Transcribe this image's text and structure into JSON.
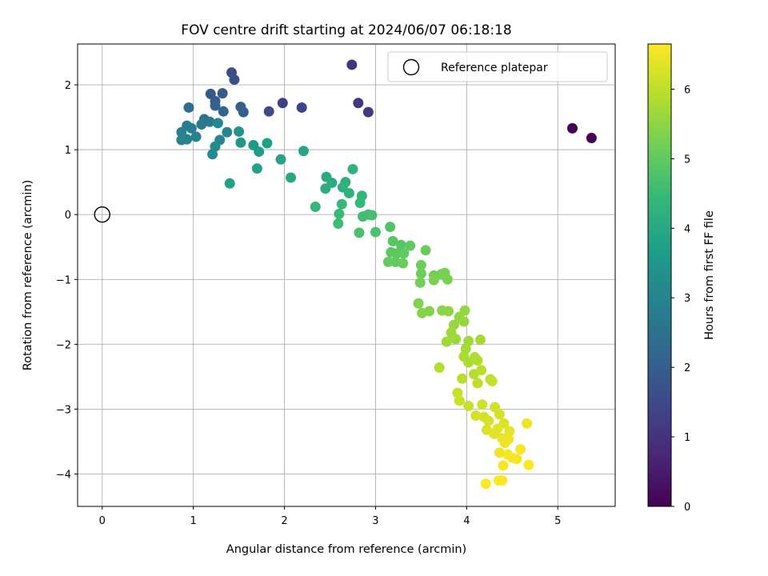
{
  "chart_data": {
    "type": "scatter",
    "title": "FOV centre drift starting at 2024/06/07 06:18:18",
    "xlabel": "Angular distance from reference (arcmin)",
    "ylabel": "Rotation from reference (arcmin)",
    "xlim": [
      -0.27,
      5.63
    ],
    "ylim": [
      -4.5,
      2.63
    ],
    "xticks": [
      "0",
      "1",
      "2",
      "3",
      "4",
      "5"
    ],
    "xtick_values": [
      0,
      1,
      2,
      3,
      4,
      5
    ],
    "yticks": [
      "2",
      "1",
      "0",
      "−1",
      "−2",
      "−3",
      "−4"
    ],
    "ytick_values": [
      2,
      1,
      0,
      -1,
      -2,
      -3,
      -4
    ],
    "grid": true,
    "legend": {
      "label": "Reference platepar",
      "location": "upper right",
      "marker": "open circle"
    },
    "colorbar": {
      "label": "Hours from first FF file",
      "colormap": "viridis",
      "range": [
        0,
        6.65
      ],
      "ticks": [
        "0",
        "1",
        "2",
        "3",
        "4",
        "5",
        "6"
      ],
      "tick_values": [
        0,
        1,
        2,
        3,
        4,
        5,
        6
      ]
    },
    "colors": [
      "#440154",
      "#482878",
      "#3e4989",
      "#31688e",
      "#26828e",
      "#1f9e89",
      "#35b779",
      "#6ece58",
      "#b5de2b",
      "#fde725"
    ],
    "reference_point": {
      "x": 0,
      "y": 0
    },
    "points": [
      {
        "x": 5.16,
        "y": 1.33,
        "t": 0.0
      },
      {
        "x": 5.37,
        "y": 1.18,
        "t": 0.0
      },
      {
        "x": 2.74,
        "y": 2.31,
        "t": 1.0
      },
      {
        "x": 2.81,
        "y": 1.72,
        "t": 1.1
      },
      {
        "x": 2.92,
        "y": 1.58,
        "t": 1.15
      },
      {
        "x": 1.98,
        "y": 1.72,
        "t": 1.3
      },
      {
        "x": 2.19,
        "y": 1.65,
        "t": 1.35
      },
      {
        "x": 1.83,
        "y": 1.59,
        "t": 1.5
      },
      {
        "x": 1.42,
        "y": 2.19,
        "t": 1.6
      },
      {
        "x": 1.45,
        "y": 2.08,
        "t": 1.65
      },
      {
        "x": 1.19,
        "y": 1.86,
        "t": 1.8
      },
      {
        "x": 1.32,
        "y": 1.87,
        "t": 1.85
      },
      {
        "x": 1.24,
        "y": 1.75,
        "t": 1.9
      },
      {
        "x": 1.52,
        "y": 1.66,
        "t": 1.95
      },
      {
        "x": 1.55,
        "y": 1.58,
        "t": 2.0
      },
      {
        "x": 1.24,
        "y": 1.68,
        "t": 2.1
      },
      {
        "x": 1.33,
        "y": 1.59,
        "t": 2.2
      },
      {
        "x": 0.95,
        "y": 1.65,
        "t": 2.4
      },
      {
        "x": 1.12,
        "y": 1.47,
        "t": 2.6
      },
      {
        "x": 1.18,
        "y": 1.43,
        "t": 2.65
      },
      {
        "x": 1.09,
        "y": 1.39,
        "t": 2.7
      },
      {
        "x": 0.93,
        "y": 1.37,
        "t": 2.8
      },
      {
        "x": 0.98,
        "y": 1.33,
        "t": 2.85
      },
      {
        "x": 0.87,
        "y": 1.27,
        "t": 2.9
      },
      {
        "x": 1.03,
        "y": 1.2,
        "t": 2.95
      },
      {
        "x": 0.87,
        "y": 1.15,
        "t": 3.0
      },
      {
        "x": 0.93,
        "y": 1.16,
        "t": 3.0
      },
      {
        "x": 1.27,
        "y": 1.41,
        "t": 3.05
      },
      {
        "x": 1.37,
        "y": 1.27,
        "t": 3.1
      },
      {
        "x": 1.29,
        "y": 1.15,
        "t": 3.1
      },
      {
        "x": 1.24,
        "y": 1.05,
        "t": 3.15
      },
      {
        "x": 1.21,
        "y": 0.93,
        "t": 3.2
      },
      {
        "x": 1.5,
        "y": 1.28,
        "t": 3.4
      },
      {
        "x": 1.52,
        "y": 1.11,
        "t": 3.5
      },
      {
        "x": 1.66,
        "y": 1.07,
        "t": 3.6
      },
      {
        "x": 1.72,
        "y": 0.97,
        "t": 3.7
      },
      {
        "x": 1.81,
        "y": 1.1,
        "t": 3.75
      },
      {
        "x": 1.4,
        "y": 0.48,
        "t": 3.8
      },
      {
        "x": 1.7,
        "y": 0.71,
        "t": 3.85
      },
      {
        "x": 1.96,
        "y": 0.85,
        "t": 3.9
      },
      {
        "x": 2.21,
        "y": 0.98,
        "t": 3.95
      },
      {
        "x": 2.07,
        "y": 0.57,
        "t": 4.0
      },
      {
        "x": 2.46,
        "y": 0.58,
        "t": 4.05
      },
      {
        "x": 2.52,
        "y": 0.49,
        "t": 4.1
      },
      {
        "x": 2.45,
        "y": 0.4,
        "t": 4.15
      },
      {
        "x": 2.67,
        "y": 0.5,
        "t": 4.2
      },
      {
        "x": 2.64,
        "y": 0.42,
        "t": 4.25
      },
      {
        "x": 2.75,
        "y": 0.7,
        "t": 4.25
      },
      {
        "x": 2.71,
        "y": 0.33,
        "t": 4.3
      },
      {
        "x": 2.85,
        "y": 0.29,
        "t": 4.35
      },
      {
        "x": 2.34,
        "y": 0.12,
        "t": 4.4
      },
      {
        "x": 2.63,
        "y": 0.16,
        "t": 4.45
      },
      {
        "x": 2.83,
        "y": 0.18,
        "t": 4.45
      },
      {
        "x": 2.6,
        "y": 0.01,
        "t": 4.5
      },
      {
        "x": 2.59,
        "y": -0.14,
        "t": 4.55
      },
      {
        "x": 2.86,
        "y": -0.03,
        "t": 4.6
      },
      {
        "x": 2.92,
        "y": 0.0,
        "t": 4.6
      },
      {
        "x": 2.96,
        "y": -0.01,
        "t": 4.65
      },
      {
        "x": 2.82,
        "y": -0.28,
        "t": 4.7
      },
      {
        "x": 3.0,
        "y": -0.27,
        "t": 4.75
      },
      {
        "x": 3.16,
        "y": -0.19,
        "t": 4.8
      },
      {
        "x": 3.19,
        "y": -0.41,
        "t": 4.85
      },
      {
        "x": 3.28,
        "y": -0.47,
        "t": 4.9
      },
      {
        "x": 3.17,
        "y": -0.58,
        "t": 4.95
      },
      {
        "x": 3.23,
        "y": -0.6,
        "t": 4.95
      },
      {
        "x": 3.38,
        "y": -0.48,
        "t": 5.0
      },
      {
        "x": 3.31,
        "y": -0.6,
        "t": 5.0
      },
      {
        "x": 3.14,
        "y": -0.73,
        "t": 5.05
      },
      {
        "x": 3.22,
        "y": -0.73,
        "t": 5.05
      },
      {
        "x": 3.3,
        "y": -0.75,
        "t": 5.1
      },
      {
        "x": 3.55,
        "y": -0.55,
        "t": 5.1
      },
      {
        "x": 3.5,
        "y": -0.78,
        "t": 5.15
      },
      {
        "x": 3.5,
        "y": -0.91,
        "t": 5.15
      },
      {
        "x": 3.49,
        "y": -1.05,
        "t": 5.2
      },
      {
        "x": 3.64,
        "y": -0.94,
        "t": 5.2
      },
      {
        "x": 3.72,
        "y": -0.92,
        "t": 5.25
      },
      {
        "x": 3.76,
        "y": -0.9,
        "t": 5.25
      },
      {
        "x": 3.64,
        "y": -1.01,
        "t": 5.3
      },
      {
        "x": 3.79,
        "y": -1.0,
        "t": 5.3
      },
      {
        "x": 3.47,
        "y": -1.37,
        "t": 5.35
      },
      {
        "x": 3.51,
        "y": -1.52,
        "t": 5.4
      },
      {
        "x": 3.59,
        "y": -1.49,
        "t": 5.4
      },
      {
        "x": 3.73,
        "y": -1.48,
        "t": 5.45
      },
      {
        "x": 3.8,
        "y": -1.49,
        "t": 5.5
      },
      {
        "x": 3.92,
        "y": -1.58,
        "t": 5.55
      },
      {
        "x": 3.98,
        "y": -1.48,
        "t": 5.55
      },
      {
        "x": 3.86,
        "y": -1.7,
        "t": 5.6
      },
      {
        "x": 3.97,
        "y": -1.65,
        "t": 5.6
      },
      {
        "x": 3.83,
        "y": -1.82,
        "t": 5.65
      },
      {
        "x": 3.88,
        "y": -1.92,
        "t": 5.65
      },
      {
        "x": 3.78,
        "y": -1.96,
        "t": 5.7
      },
      {
        "x": 4.02,
        "y": -1.95,
        "t": 5.7
      },
      {
        "x": 4.15,
        "y": -1.93,
        "t": 5.75
      },
      {
        "x": 3.99,
        "y": -2.07,
        "t": 5.75
      },
      {
        "x": 3.97,
        "y": -2.19,
        "t": 5.8
      },
      {
        "x": 4.02,
        "y": -2.28,
        "t": 5.8
      },
      {
        "x": 4.09,
        "y": -2.2,
        "t": 5.85
      },
      {
        "x": 4.12,
        "y": -2.25,
        "t": 5.85
      },
      {
        "x": 3.7,
        "y": -2.36,
        "t": 5.9
      },
      {
        "x": 4.08,
        "y": -2.46,
        "t": 5.9
      },
      {
        "x": 4.16,
        "y": -2.4,
        "t": 5.95
      },
      {
        "x": 3.95,
        "y": -2.53,
        "t": 5.95
      },
      {
        "x": 4.12,
        "y": -2.6,
        "t": 6.0
      },
      {
        "x": 4.26,
        "y": -2.54,
        "t": 6.0
      },
      {
        "x": 4.28,
        "y": -2.57,
        "t": 6.05
      },
      {
        "x": 3.9,
        "y": -2.75,
        "t": 6.05
      },
      {
        "x": 3.92,
        "y": -2.87,
        "t": 6.1
      },
      {
        "x": 4.02,
        "y": -2.95,
        "t": 6.1
      },
      {
        "x": 4.17,
        "y": -2.93,
        "t": 6.15
      },
      {
        "x": 4.31,
        "y": -2.97,
        "t": 6.15
      },
      {
        "x": 4.1,
        "y": -3.1,
        "t": 6.2
      },
      {
        "x": 4.19,
        "y": -3.12,
        "t": 6.2
      },
      {
        "x": 4.24,
        "y": -3.18,
        "t": 6.25
      },
      {
        "x": 4.36,
        "y": -3.08,
        "t": 6.25
      },
      {
        "x": 4.41,
        "y": -3.22,
        "t": 6.3
      },
      {
        "x": 4.22,
        "y": -3.32,
        "t": 6.3
      },
      {
        "x": 4.3,
        "y": -3.38,
        "t": 6.35
      },
      {
        "x": 4.34,
        "y": -3.3,
        "t": 6.35
      },
      {
        "x": 4.39,
        "y": -3.45,
        "t": 6.4
      },
      {
        "x": 4.47,
        "y": -3.34,
        "t": 6.4
      },
      {
        "x": 4.42,
        "y": -3.52,
        "t": 6.45
      },
      {
        "x": 4.46,
        "y": -3.46,
        "t": 6.45
      },
      {
        "x": 4.66,
        "y": -3.22,
        "t": 6.5
      },
      {
        "x": 4.36,
        "y": -3.67,
        "t": 6.5
      },
      {
        "x": 4.45,
        "y": -3.7,
        "t": 6.55
      },
      {
        "x": 4.5,
        "y": -3.75,
        "t": 6.55
      },
      {
        "x": 4.59,
        "y": -3.62,
        "t": 6.6
      },
      {
        "x": 4.55,
        "y": -3.77,
        "t": 6.6
      },
      {
        "x": 4.4,
        "y": -3.87,
        "t": 6.6
      },
      {
        "x": 4.68,
        "y": -3.86,
        "t": 6.65
      },
      {
        "x": 4.35,
        "y": -4.1,
        "t": 6.65
      },
      {
        "x": 4.39,
        "y": -4.1,
        "t": 6.65
      },
      {
        "x": 4.21,
        "y": -4.15,
        "t": 6.65
      }
    ]
  }
}
